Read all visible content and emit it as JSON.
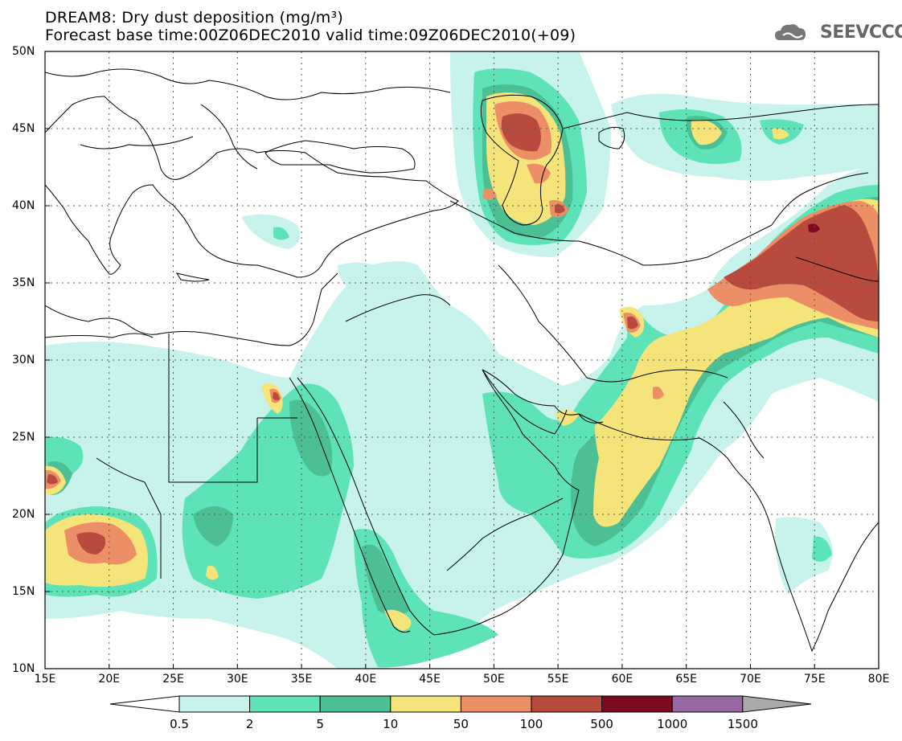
{
  "title_line1": "DREAM8: Dry dust deposition (mg/m³)",
  "title_line2": "Forecast base time:00Z06DEC2010 valid time:09Z06DEC2010(+09)",
  "logo_text": "SEEVCCC",
  "map": {
    "lon_range": [
      15,
      80
    ],
    "lat_range": [
      10,
      50
    ],
    "lon_ticks": [
      "15E",
      "20E",
      "25E",
      "30E",
      "35E",
      "40E",
      "45E",
      "50E",
      "55E",
      "60E",
      "65E",
      "70E",
      "75E",
      "80E"
    ],
    "lat_ticks": [
      "10N",
      "15N",
      "20N",
      "25N",
      "30N",
      "35N",
      "40N",
      "45N",
      "50N"
    ]
  },
  "colorbar": {
    "labels": [
      "0.5",
      "2",
      "5",
      "10",
      "50",
      "100",
      "500",
      "1000",
      "1500"
    ],
    "colors": [
      "#c8f2ec",
      "#5ee3b8",
      "#4cbf95",
      "#f4e47a",
      "#ec8f66",
      "#b94b3e",
      "#7a0a22",
      "#9667a3"
    ],
    "low_arrow_color": "#ffffff",
    "high_arrow_color": "#aaaaaa"
  }
}
